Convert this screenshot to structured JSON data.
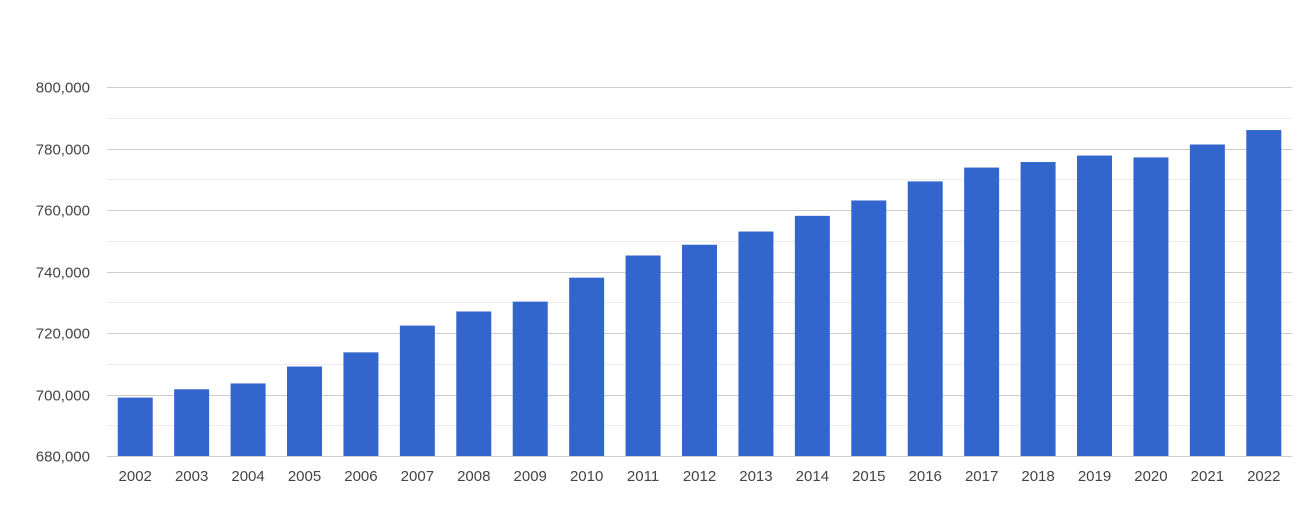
{
  "chart_data": {
    "type": "bar",
    "title": "",
    "xlabel": "",
    "ylabel": "",
    "categories": [
      "2002",
      "2003",
      "2004",
      "2005",
      "2006",
      "2007",
      "2008",
      "2009",
      "2010",
      "2011",
      "2012",
      "2013",
      "2014",
      "2015",
      "2016",
      "2017",
      "2018",
      "2019",
      "2020",
      "2021",
      "2022"
    ],
    "values": [
      699000,
      701700,
      703600,
      709100,
      713700,
      722400,
      727000,
      730200,
      738000,
      745200,
      748700,
      753000,
      758100,
      763100,
      769300,
      773800,
      775600,
      777700,
      777100,
      781300,
      786000
    ],
    "ylim": [
      680000,
      800000
    ],
    "yticks": [
      680000,
      700000,
      720000,
      740000,
      760000,
      780000,
      800000
    ],
    "ytick_labels": [
      "680,000",
      "700,000",
      "720,000",
      "740,000",
      "760,000",
      "780,000",
      "800,000"
    ],
    "grid": true,
    "legend": "none",
    "colors": {
      "bar": "#3366cc",
      "major_grid": "#cccccc",
      "minor_grid": "#ebebeb",
      "text": "#444444"
    }
  }
}
